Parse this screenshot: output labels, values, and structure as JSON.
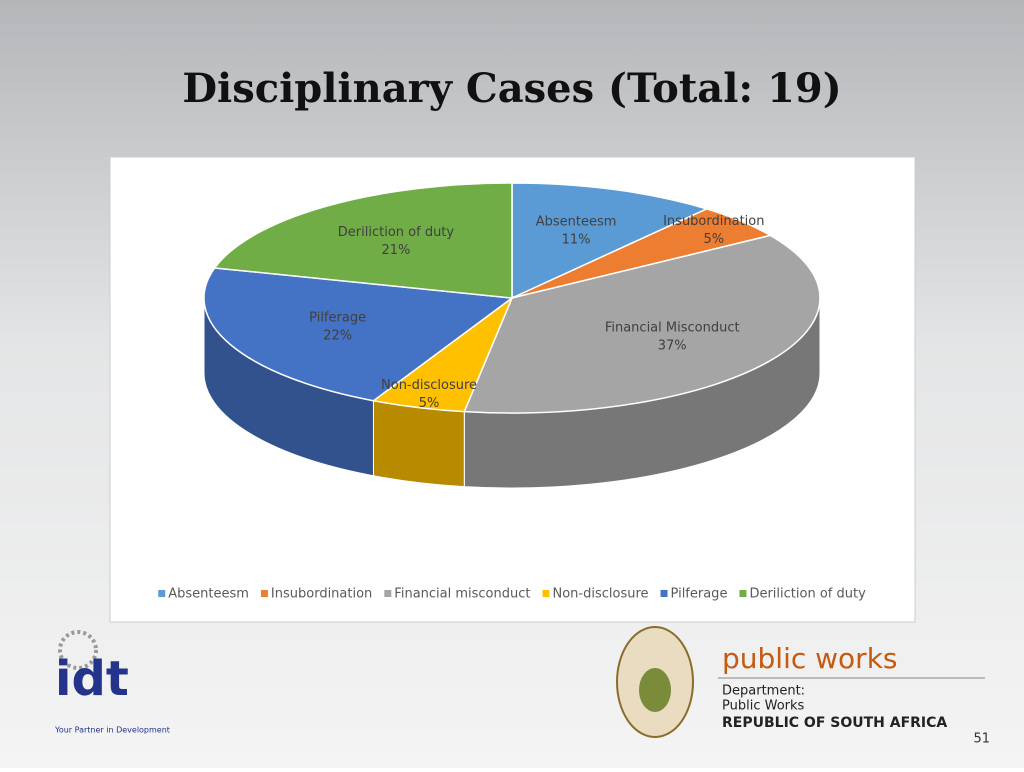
{
  "chart_data": {
    "type": "pie3d",
    "title": "Disciplinary Cases (Total: 19)",
    "categories": [
      "Absenteesm",
      "Insubordination",
      "Financial misconduct",
      "Non-disclosure",
      "Pilferage",
      "Deriliction of duty"
    ],
    "slice_labels": [
      "Absenteesm",
      "Insubordination",
      "Financial Misconduct",
      "Non-disclosure",
      "Pilferage",
      "Deriliction of duty"
    ],
    "values": [
      11,
      5,
      37,
      5,
      22,
      21
    ],
    "value_labels": [
      "11%",
      "5%",
      "37%",
      "5%",
      "22%",
      "21%"
    ],
    "colors": [
      "#5b9bd5",
      "#ed7d31",
      "#a5a5a5",
      "#ffc000",
      "#4472c4",
      "#70ad47"
    ],
    "legend": "bottom"
  },
  "footer": {
    "idt_logo": "idt",
    "idt_tagline": "Your Partner in Development",
    "pw_title": "public works",
    "pw_line1": "Department:",
    "pw_line2": "Public Works",
    "pw_line3": "REPUBLIC OF SOUTH AFRICA",
    "page_number": "51"
  }
}
